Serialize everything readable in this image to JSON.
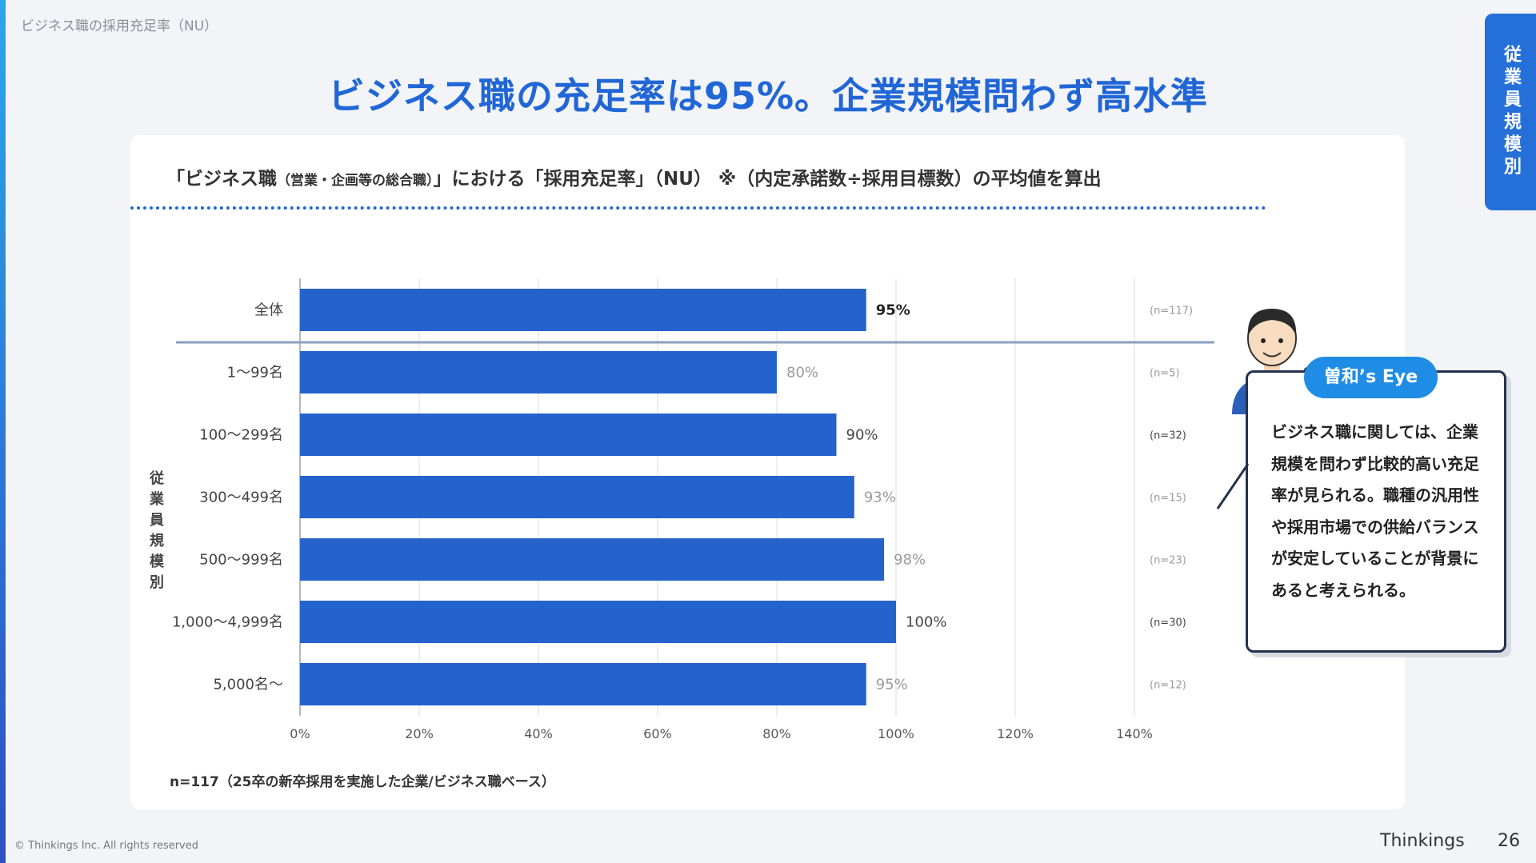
{
  "breadcrumb": "ビジネス職の採用充足率（NU）",
  "main_title": "ビジネス職の充足率は95%。企業規模問わず高水準",
  "side_tab": "従業員規模別",
  "subtitle_part1": "「ビジネス職",
  "subtitle_part2": "（営業・企画等の総合職）",
  "subtitle_part3": "」における「採用充足率」（NU） ※（内定承諾数÷採用目標数）の平均値を算出",
  "axis_category_label": [
    "従",
    "業",
    "員",
    "規",
    "模",
    "別"
  ],
  "footnote": "n=117（25卒の新卒採用を実施した企業/ビジネス職ベース）",
  "copyright": "© Thinkings Inc. All rights reserved",
  "brand": "Thinkings",
  "page_number": "26",
  "eye_badge": "曽和’s Eye",
  "comment": "ビジネス職に関しては、企業規模を問わず比較的高い充足率が見られる。職種の汎用性や採用市場での供給バランスが安定していることが背景にあると考えられる。",
  "colors": {
    "bar": "#2563cc",
    "title": "#2166d6",
    "badge": "#1f8de6",
    "grid": "#d9dce1",
    "separator": "#8aa0c0"
  },
  "chart_data": {
    "type": "bar",
    "orientation": "horizontal",
    "categories": [
      "全体",
      "1～99名",
      "100～299名",
      "300～499名",
      "500～999名",
      "1,000～4,999名",
      "5,000名～"
    ],
    "values": [
      95,
      80,
      90,
      93,
      98,
      100,
      95
    ],
    "value_labels": [
      "95%",
      "80%",
      "90%",
      "93%",
      "98%",
      "100%",
      "95%"
    ],
    "sample_sizes": [
      "(n=117)",
      "(n=5)",
      "(n=32)",
      "(n=15)",
      "(n=23)",
      "(n=30)",
      "(n=12)"
    ],
    "x_ticks": [
      "0%",
      "20%",
      "40%",
      "60%",
      "80%",
      "100%",
      "120%",
      "140%"
    ],
    "xlim": [
      0,
      140
    ],
    "grid": true,
    "ylabel": "従業員規模別"
  }
}
